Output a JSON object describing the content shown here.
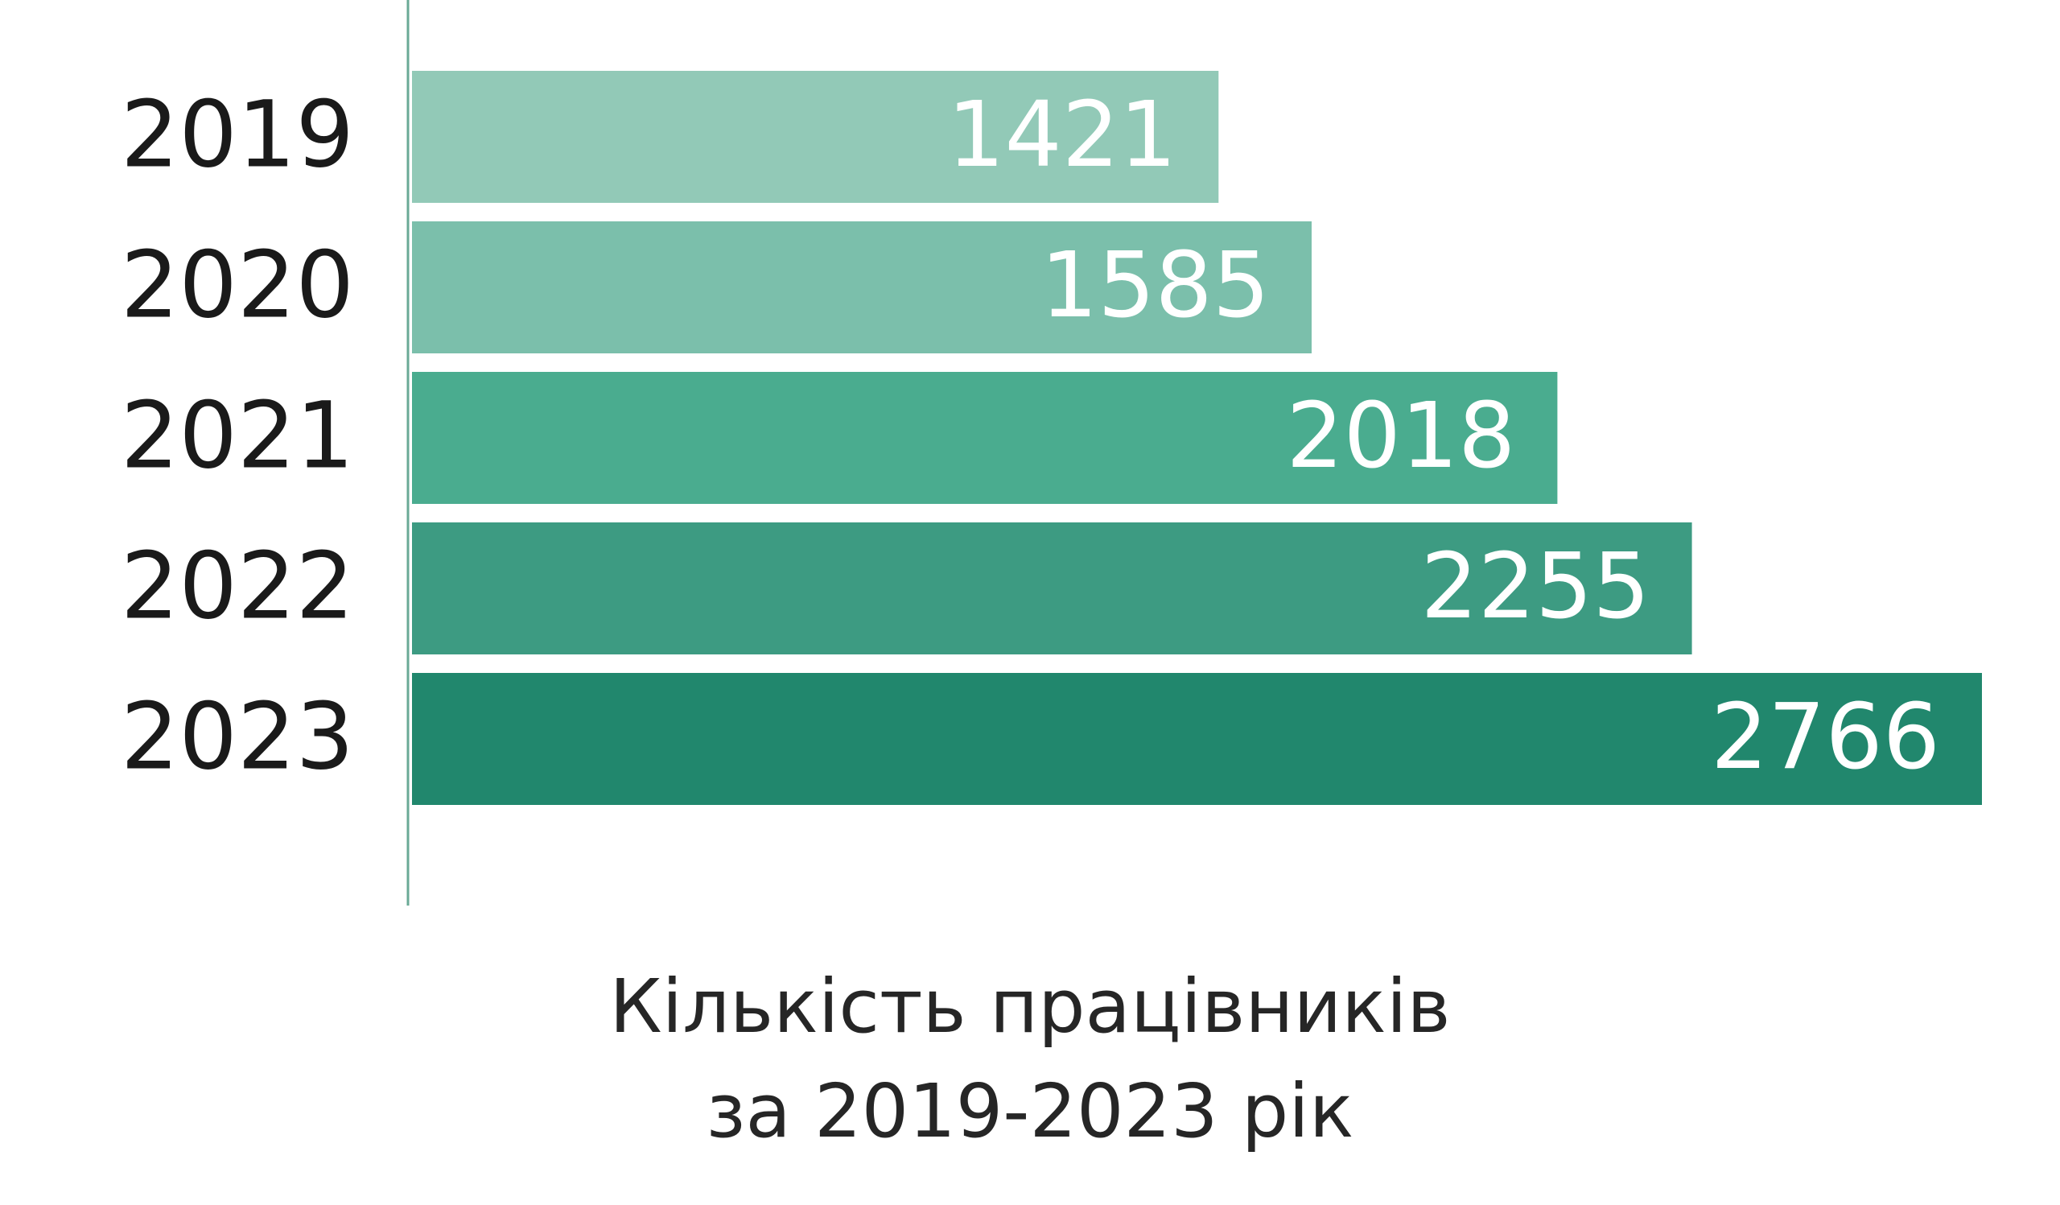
{
  "chart_data": {
    "type": "bar",
    "orientation": "horizontal",
    "categories": [
      "2019",
      "2020",
      "2021",
      "2022",
      "2023"
    ],
    "values": [
      1421,
      1585,
      2018,
      2255,
      2766
    ],
    "title": [
      "Кількість працівників",
      "за 2019-2023 рік"
    ],
    "xlabel": "",
    "ylabel": "",
    "xlim": [
      0,
      2766
    ],
    "grid": false,
    "legend": "none",
    "bar_colors": [
      "#92c9b7",
      "#7bbfab",
      "#4aac8f",
      "#3d9b82",
      "#21876d"
    ],
    "value_label_color": "#ffffff",
    "category_label_color": "#1a1a1a",
    "axis_color": "#6aaa96"
  }
}
